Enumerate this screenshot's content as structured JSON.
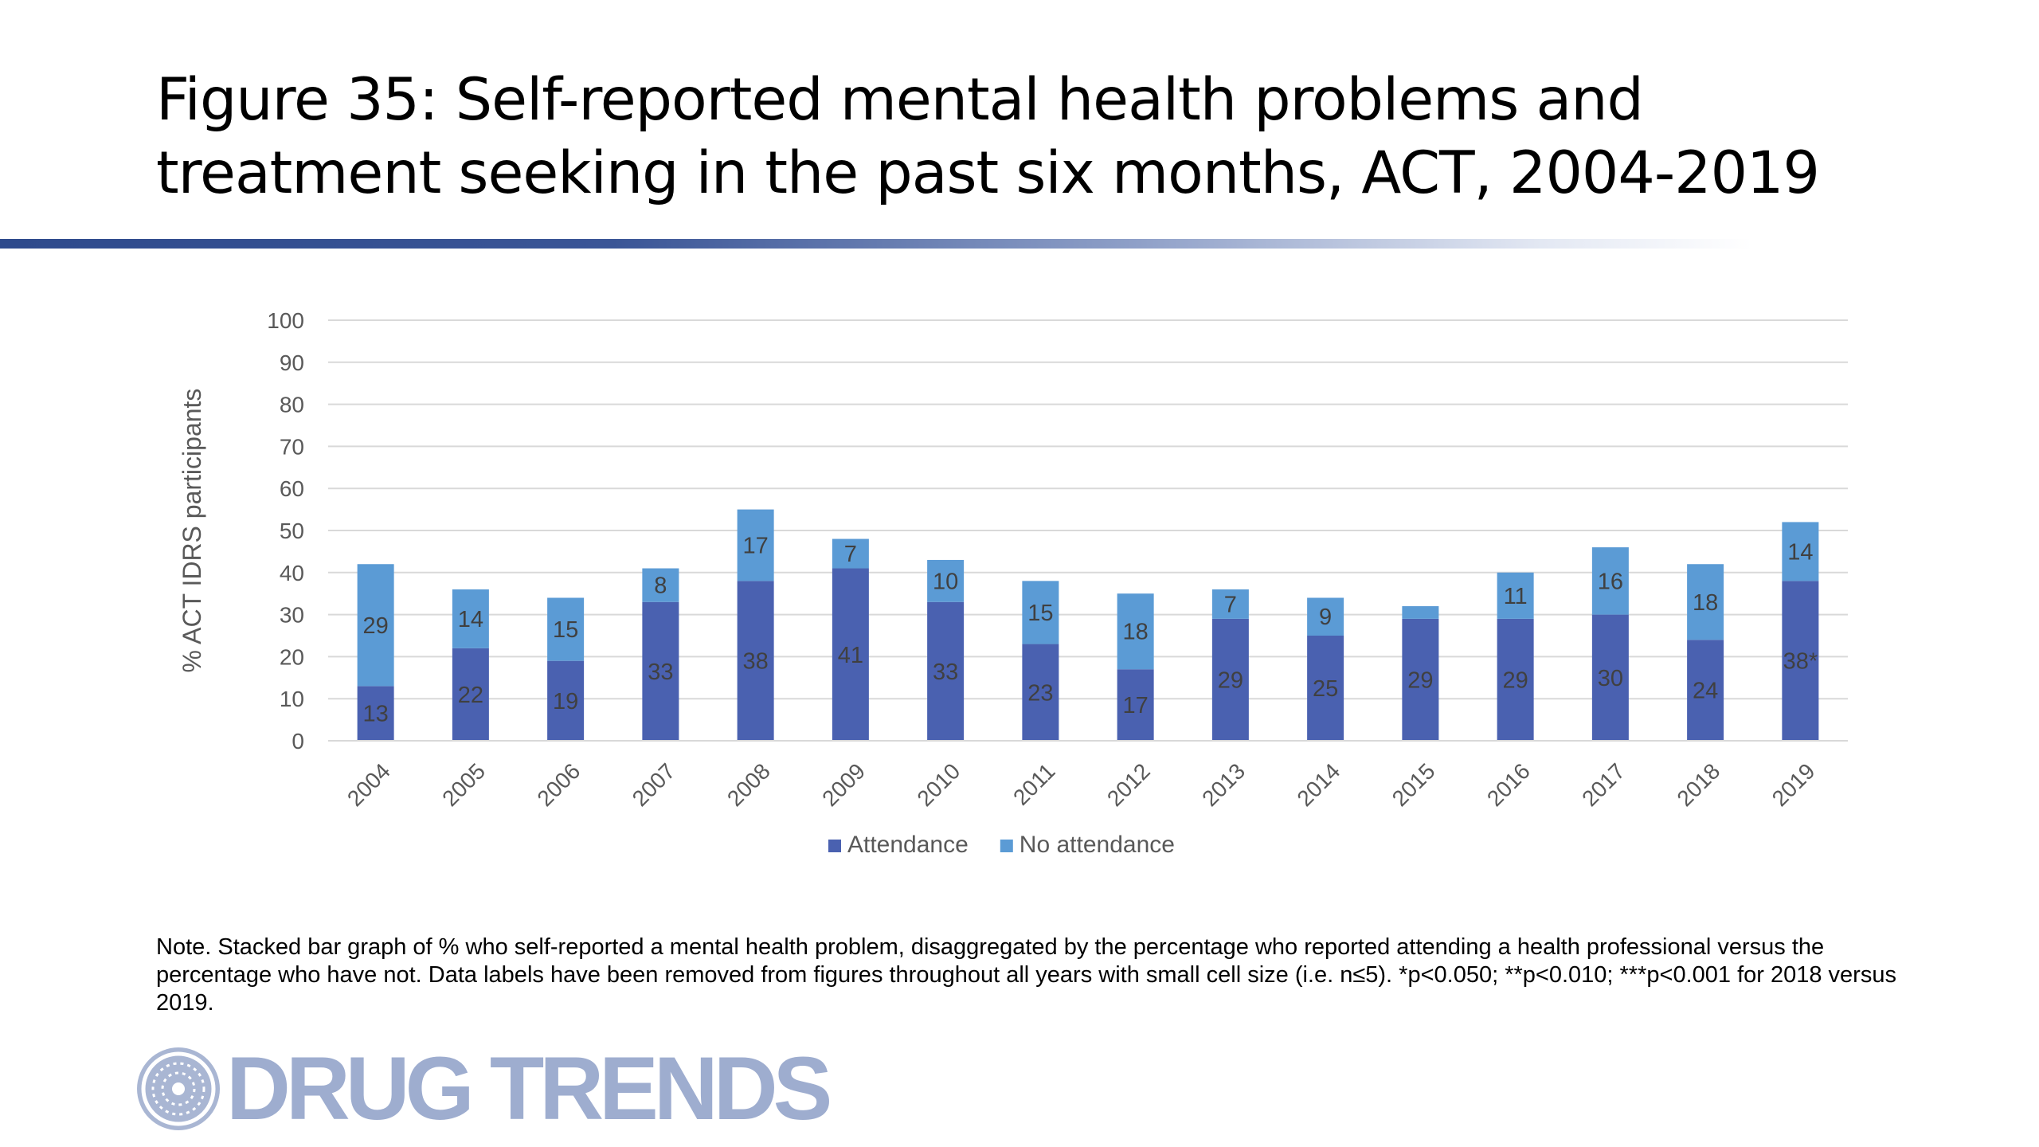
{
  "title": "Figure 35: Self-reported mental health problems and treatment seeking in the past six months, ACT, 2004-2019",
  "note": "Note. Stacked bar graph of % who self-reported a mental health problem, disaggregated by the percentage who reported attending a health professional versus the percentage who have not. Data labels have been removed from figures throughout all years with small cell size (i.e. n≤5). *p<0.050; **p<0.010; ***p<0.001 for 2018 versus 2019.",
  "logo": {
    "text": "DRUG TRENDS",
    "icon": "globe-icon"
  },
  "colors": {
    "attendance": "#4a61b0",
    "no_attendance": "#5b9bd5",
    "rule": "#2e4a8c",
    "logo": "#9eadcf"
  },
  "chart_data": {
    "type": "bar",
    "stacked": true,
    "categories": [
      "2004",
      "2005",
      "2006",
      "2007",
      "2008",
      "2009",
      "2010",
      "2011",
      "2012",
      "2013",
      "2014",
      "2015",
      "2016",
      "2017",
      "2018",
      "2019"
    ],
    "series": [
      {
        "name": "Attendance",
        "color": "#4a61b0",
        "values": [
          13,
          22,
          19,
          33,
          38,
          41,
          33,
          23,
          17,
          29,
          25,
          29,
          29,
          30,
          24,
          38
        ],
        "labels": [
          "13",
          "22",
          "19",
          "33",
          "38",
          "41",
          "33",
          "23",
          "17",
          "29",
          "25",
          "29",
          "29",
          "30",
          "24",
          "38*"
        ]
      },
      {
        "name": "No attendance",
        "color": "#5b9bd5",
        "values": [
          29,
          14,
          15,
          8,
          17,
          7,
          10,
          15,
          18,
          7,
          9,
          3,
          11,
          16,
          18,
          14
        ],
        "labels": [
          "29",
          "14",
          "15",
          "8",
          "17",
          "7",
          "10",
          "15",
          "18",
          "7",
          "9",
          "",
          "11",
          "16",
          "18",
          "14"
        ]
      }
    ],
    "ylabel": "% ACT IDRS participants",
    "xlabel": "",
    "ylim": [
      0,
      100
    ],
    "yticks": [
      0,
      10,
      20,
      30,
      40,
      50,
      60,
      70,
      80,
      90,
      100
    ],
    "grid": true,
    "legend": "bottom"
  }
}
